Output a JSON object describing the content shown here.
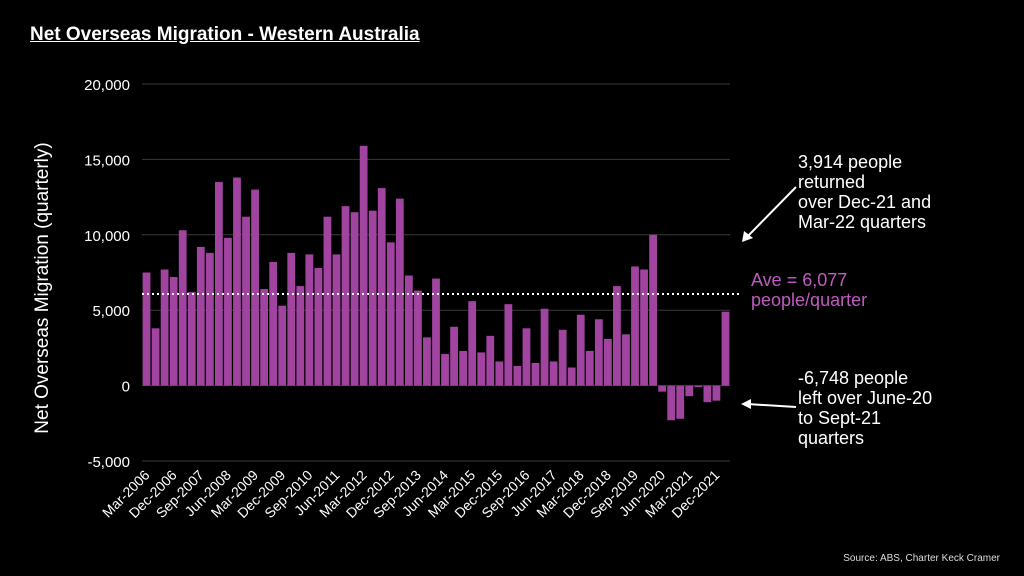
{
  "title": "Net Overseas Migration - Western Australia",
  "annotations": {
    "returned": "3,914 people returned over Dec-21 and Mar-22 quarters",
    "returned_lines": [
      "3,914 people",
      "returned",
      "over Dec-21 and",
      "Mar-22 quarters"
    ],
    "average_lines": [
      "Ave = 6,077",
      "people/quarter"
    ],
    "left_lines": [
      "-6,748 people",
      "left over June-20",
      "to Sept-21",
      "quarters"
    ]
  },
  "source": "Source: ABS,  Charter Keck Cramer",
  "colors": {
    "bar": "#a044a0",
    "average_text": "#c05bc0",
    "background": "#000000"
  },
  "chart_data": {
    "type": "bar",
    "title": "Net Overseas Migration - Western Australia",
    "xlabel": "",
    "ylabel": "Net Overseas Migration (quarterly)",
    "ylim": [
      -5000,
      20000
    ],
    "yticks": [
      -5000,
      0,
      5000,
      10000,
      15000,
      20000
    ],
    "ytick_labels": [
      "-5,000",
      "0",
      "5,000",
      "10,000",
      "15,000",
      "20,000"
    ],
    "grid": true,
    "categories": [
      "Mar-2006",
      "Jun-2006",
      "Sep-2006",
      "Dec-2006",
      "Mar-2007",
      "Jun-2007",
      "Sep-2007",
      "Dec-2007",
      "Mar-2008",
      "Jun-2008",
      "Sep-2008",
      "Dec-2008",
      "Mar-2009",
      "Jun-2009",
      "Sep-2009",
      "Dec-2009",
      "Mar-2010",
      "Jun-2010",
      "Sep-2010",
      "Dec-2010",
      "Mar-2011",
      "Jun-2011",
      "Sep-2011",
      "Dec-2011",
      "Mar-2012",
      "Jun-2012",
      "Sep-2012",
      "Dec-2012",
      "Mar-2013",
      "Jun-2013",
      "Sep-2013",
      "Dec-2013",
      "Mar-2014",
      "Jun-2014",
      "Sep-2014",
      "Dec-2014",
      "Mar-2015",
      "Jun-2015",
      "Sep-2015",
      "Dec-2015",
      "Mar-2016",
      "Jun-2016",
      "Sep-2016",
      "Dec-2016",
      "Mar-2017",
      "Jun-2017",
      "Sep-2017",
      "Dec-2017",
      "Mar-2018",
      "Jun-2018",
      "Sep-2018",
      "Dec-2018",
      "Mar-2019",
      "Jun-2019",
      "Sep-2019",
      "Dec-2019",
      "Mar-2020",
      "Jun-2020",
      "Sep-2020",
      "Dec-2020",
      "Mar-2021",
      "Jun-2021",
      "Sep-2021",
      "Dec-2021",
      "Mar-2022"
    ],
    "tick_labels": [
      "Mar-2006",
      "Dec-2006",
      "Sep-2007",
      "Jun-2008",
      "Mar-2009",
      "Dec-2009",
      "Sep-2010",
      "Jun-2011",
      "Mar-2012",
      "Dec-2012",
      "Sep-2013",
      "Jun-2014",
      "Mar-2015",
      "Dec-2015",
      "Sep-2016",
      "Jun-2017",
      "Mar-2018",
      "Dec-2018",
      "Sep-2019",
      "Jun-2020",
      "Mar-2021",
      "Dec-2021"
    ],
    "values": [
      7500,
      3800,
      7700,
      7200,
      10300,
      6200,
      9200,
      8800,
      13500,
      9800,
      13800,
      11200,
      13000,
      6400,
      8200,
      5300,
      8800,
      6600,
      8700,
      7800,
      11200,
      8700,
      11900,
      11500,
      15900,
      11600,
      13100,
      9500,
      12400,
      7300,
      6300,
      3200,
      7100,
      2100,
      3900,
      2300,
      5600,
      2200,
      3300,
      1600,
      5400,
      1300,
      3800,
      1500,
      5100,
      1600,
      3700,
      1200,
      4700,
      2300,
      4400,
      3100,
      6600,
      3400,
      7900,
      7700,
      10000,
      -400,
      -2300,
      -2200,
      -700,
      -100,
      -1100,
      -1000,
      4900
    ],
    "average": {
      "value": 6077,
      "label": "Ave = 6,077 people/quarter"
    }
  }
}
